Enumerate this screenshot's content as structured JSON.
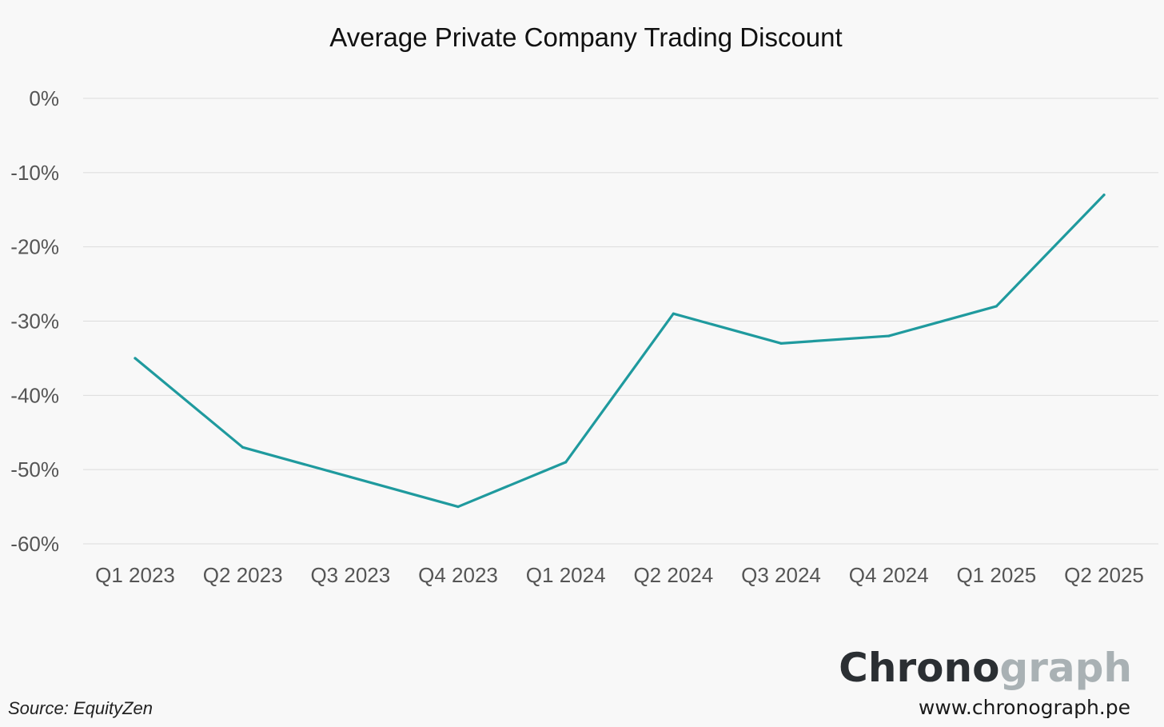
{
  "chart_data": {
    "type": "line",
    "title": "Average Private Company Trading Discount",
    "categories": [
      "Q1 2023",
      "Q2 2023",
      "Q3 2023",
      "Q4 2023",
      "Q1 2024",
      "Q2 2024",
      "Q3 2024",
      "Q4 2024",
      "Q1 2025",
      "Q2 2025"
    ],
    "series": [
      {
        "values": [
          -35,
          -47,
          -51,
          -55,
          -49,
          -29,
          -33,
          -32,
          -28,
          -13
        ]
      }
    ],
    "y_ticks": [
      0,
      -10,
      -20,
      -30,
      -40,
      -50,
      -60
    ],
    "y_tick_labels": [
      "0%",
      "-10%",
      "-20%",
      "-30%",
      "-40%",
      "-50%",
      "-60%"
    ],
    "ylim": [
      -60,
      0
    ],
    "xlabel": "",
    "ylabel": "",
    "grid": true,
    "line_color": "#1f9a9e",
    "grid_color": "#dcdcdc"
  },
  "source": "Source: EquityZen",
  "brand": {
    "name_dark": "Chrono",
    "name_light": "graph",
    "url": "www.chronograph.pe",
    "dark_color": "#2b2f33",
    "light_color": "#a9b1b4"
  }
}
